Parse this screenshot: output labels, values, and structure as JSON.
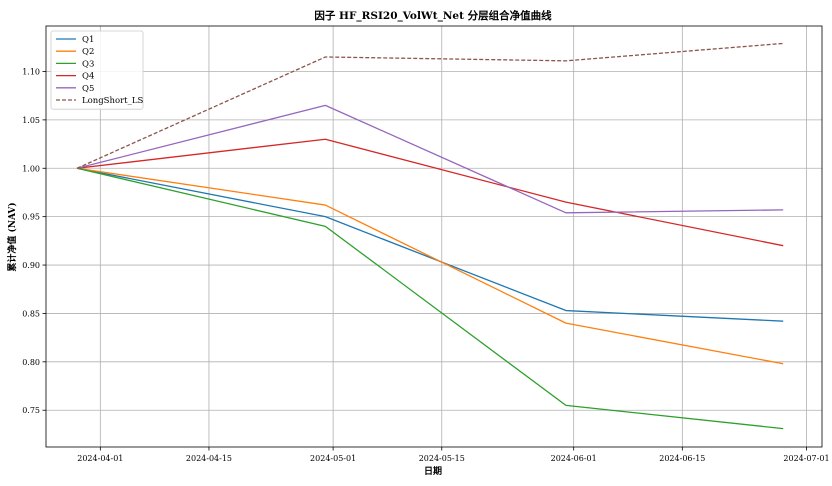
{
  "chart_data": {
    "type": "line",
    "title": "因子 HF_RSI20_VolWt_Net 分层组合净值曲线",
    "xlabel": "日期",
    "ylabel": "累计净值 (NAV)",
    "x": [
      "2024-03-29",
      "2024-04-30",
      "2024-05-31",
      "2024-06-28"
    ],
    "x_ticks": [
      "2024-04-01",
      "2024-04-15",
      "2024-05-01",
      "2024-05-15",
      "2024-06-01",
      "2024-06-15",
      "2024-07-01"
    ],
    "xlim": [
      "2024-03-25",
      "2024-07-03"
    ],
    "ylim": [
      0.712,
      1.147
    ],
    "y_ticks": [
      0.75,
      0.8,
      0.85,
      0.9,
      0.95,
      1.0,
      1.05,
      1.1
    ],
    "grid": true,
    "legend_position": "top-left",
    "series": [
      {
        "name": "Q1",
        "color": "#1f77b4",
        "dash": false,
        "values": [
          1.0,
          0.95,
          0.853,
          0.842
        ]
      },
      {
        "name": "Q2",
        "color": "#ff7f0e",
        "dash": false,
        "values": [
          1.0,
          0.962,
          0.84,
          0.798
        ]
      },
      {
        "name": "Q3",
        "color": "#2ca02c",
        "dash": false,
        "values": [
          1.0,
          0.94,
          0.755,
          0.731
        ]
      },
      {
        "name": "Q4",
        "color": "#d62728",
        "dash": false,
        "values": [
          1.0,
          1.03,
          0.965,
          0.92
        ]
      },
      {
        "name": "Q5",
        "color": "#9467bd",
        "dash": false,
        "values": [
          1.0,
          1.065,
          0.954,
          0.957
        ]
      },
      {
        "name": "LongShort_LS",
        "color": "#8c564b",
        "dash": true,
        "values": [
          1.0,
          1.115,
          1.111,
          1.129
        ]
      }
    ]
  }
}
